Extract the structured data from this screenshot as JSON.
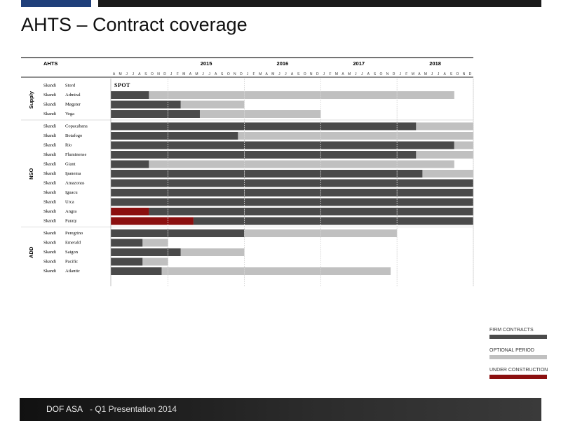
{
  "page": {
    "title": "AHTS – Contract coverage"
  },
  "chart_data": {
    "type": "gantt",
    "header_label": "AHTS",
    "years": [
      "2015",
      "2016",
      "2017",
      "2018"
    ],
    "month_letters": [
      "A",
      "M",
      "J",
      "J",
      "A",
      "S",
      "O",
      "N",
      "D",
      "J",
      "F",
      "M",
      "A",
      "M",
      "J",
      "J",
      "A",
      "S",
      "O",
      "N",
      "D",
      "J",
      "F",
      "M",
      "A",
      "M",
      "J",
      "J",
      "A",
      "S",
      "O",
      "N",
      "D",
      "J",
      "F",
      "M",
      "A",
      "M",
      "J",
      "J",
      "A",
      "S",
      "O",
      "N",
      "D",
      "J",
      "F",
      "M",
      "A",
      "M",
      "J",
      "J",
      "A",
      "S",
      "O",
      "N",
      "D"
    ],
    "timeline_start": "2014-04",
    "timeline_end": "2018-12",
    "spot_label": "SPOT",
    "groups": [
      {
        "name": "Supply",
        "vessels": [
          {
            "prefix": "Skandi",
            "name": "Stord",
            "segments": []
          },
          {
            "prefix": "Skandi",
            "name": "Admiral",
            "segments": [
              {
                "type": "firm",
                "start": "2014-04",
                "end": "2014-09"
              },
              {
                "type": "optional",
                "start": "2014-10",
                "end": "2018-09"
              }
            ]
          },
          {
            "prefix": "Skandi",
            "name": "Møgster",
            "segments": [
              {
                "type": "firm",
                "start": "2014-04",
                "end": "2015-02"
              },
              {
                "type": "optional",
                "start": "2015-03",
                "end": "2015-12"
              }
            ]
          },
          {
            "prefix": "Skandi",
            "name": "Vega",
            "segments": [
              {
                "type": "firm",
                "start": "2014-04",
                "end": "2015-05"
              },
              {
                "type": "optional",
                "start": "2015-06",
                "end": "2016-12"
              }
            ]
          }
        ]
      },
      {
        "name": "NSO",
        "vessels": [
          {
            "prefix": "Skandi",
            "name": "Copacabana",
            "segments": [
              {
                "type": "firm",
                "start": "2014-04",
                "end": "2018-03"
              },
              {
                "type": "optional",
                "start": "2018-04",
                "end": "2018-12"
              }
            ]
          },
          {
            "prefix": "Skandi",
            "name": "Botafogo",
            "segments": [
              {
                "type": "firm",
                "start": "2014-04",
                "end": "2015-11"
              },
              {
                "type": "optional",
                "start": "2015-12",
                "end": "2018-12"
              }
            ]
          },
          {
            "prefix": "Skandi",
            "name": "Rio",
            "segments": [
              {
                "type": "firm",
                "start": "2014-04",
                "end": "2018-09"
              },
              {
                "type": "optional",
                "start": "2018-10",
                "end": "2018-12"
              }
            ]
          },
          {
            "prefix": "Skandi",
            "name": "Fluminense",
            "segments": [
              {
                "type": "firm",
                "start": "2014-04",
                "end": "2018-03"
              },
              {
                "type": "optional",
                "start": "2018-04",
                "end": "2018-12"
              }
            ]
          },
          {
            "prefix": "Skandi",
            "name": "Giant",
            "segments": [
              {
                "type": "firm",
                "start": "2014-04",
                "end": "2014-09"
              },
              {
                "type": "optional",
                "start": "2014-10",
                "end": "2018-09"
              }
            ]
          },
          {
            "prefix": "Skandi",
            "name": "Ipanema",
            "segments": [
              {
                "type": "firm",
                "start": "2014-04",
                "end": "2018-04"
              },
              {
                "type": "optional",
                "start": "2018-05",
                "end": "2018-12"
              }
            ]
          },
          {
            "prefix": "Skandi",
            "name": "Amazonas",
            "segments": [
              {
                "type": "firm",
                "start": "2014-04",
                "end": "2018-12"
              }
            ]
          },
          {
            "prefix": "Skandi",
            "name": "Iguacu",
            "segments": [
              {
                "type": "firm",
                "start": "2014-04",
                "end": "2018-12"
              }
            ]
          },
          {
            "prefix": "Skandi",
            "name": "Urca",
            "segments": [
              {
                "type": "firm",
                "start": "2014-04",
                "end": "2018-12"
              }
            ]
          },
          {
            "prefix": "Skandi",
            "name": "Angra",
            "segments": [
              {
                "type": "construction",
                "start": "2014-04",
                "end": "2014-09"
              },
              {
                "type": "firm",
                "start": "2014-10",
                "end": "2018-12"
              }
            ]
          },
          {
            "prefix": "Skandi",
            "name": "Paraty",
            "segments": [
              {
                "type": "construction",
                "start": "2014-04",
                "end": "2015-04"
              },
              {
                "type": "firm",
                "start": "2015-05",
                "end": "2018-12"
              }
            ]
          }
        ]
      },
      {
        "name": "ADD",
        "vessels": [
          {
            "prefix": "Skandi",
            "name": "Peregrino",
            "segments": [
              {
                "type": "firm",
                "start": "2014-04",
                "end": "2015-12"
              },
              {
                "type": "optional",
                "start": "2016-01",
                "end": "2017-12"
              }
            ]
          },
          {
            "prefix": "Skandi",
            "name": "Emerald",
            "segments": [
              {
                "type": "firm",
                "start": "2014-04",
                "end": "2014-08"
              },
              {
                "type": "optional",
                "start": "2014-09",
                "end": "2014-12"
              }
            ]
          },
          {
            "prefix": "Skandi",
            "name": "Saigon",
            "segments": [
              {
                "type": "firm",
                "start": "2014-04",
                "end": "2015-02"
              },
              {
                "type": "optional",
                "start": "2015-03",
                "end": "2015-12"
              }
            ]
          },
          {
            "prefix": "Skandi",
            "name": "Pacific",
            "segments": [
              {
                "type": "firm",
                "start": "2014-04",
                "end": "2014-08"
              },
              {
                "type": "optional",
                "start": "2014-09",
                "end": "2014-12"
              }
            ]
          },
          {
            "prefix": "Skandi",
            "name": "Atlantic",
            "segments": [
              {
                "type": "firm",
                "start": "2014-04",
                "end": "2014-11"
              },
              {
                "type": "optional",
                "start": "2014-12",
                "end": "2017-11"
              }
            ]
          }
        ]
      }
    ],
    "legend": [
      {
        "key": "firm",
        "label": "FIRM CONTRACTS",
        "color": "#4a4a4a"
      },
      {
        "key": "optional",
        "label": "OPTIONAL PERIOD",
        "color": "#c0c0c0"
      },
      {
        "key": "construction",
        "label": "UNDER CONSTRUCTION",
        "color": "#8b0f0f"
      }
    ]
  },
  "footer": {
    "company": "DOF ASA",
    "subtitle": "- Q1 Presentation 2014"
  }
}
